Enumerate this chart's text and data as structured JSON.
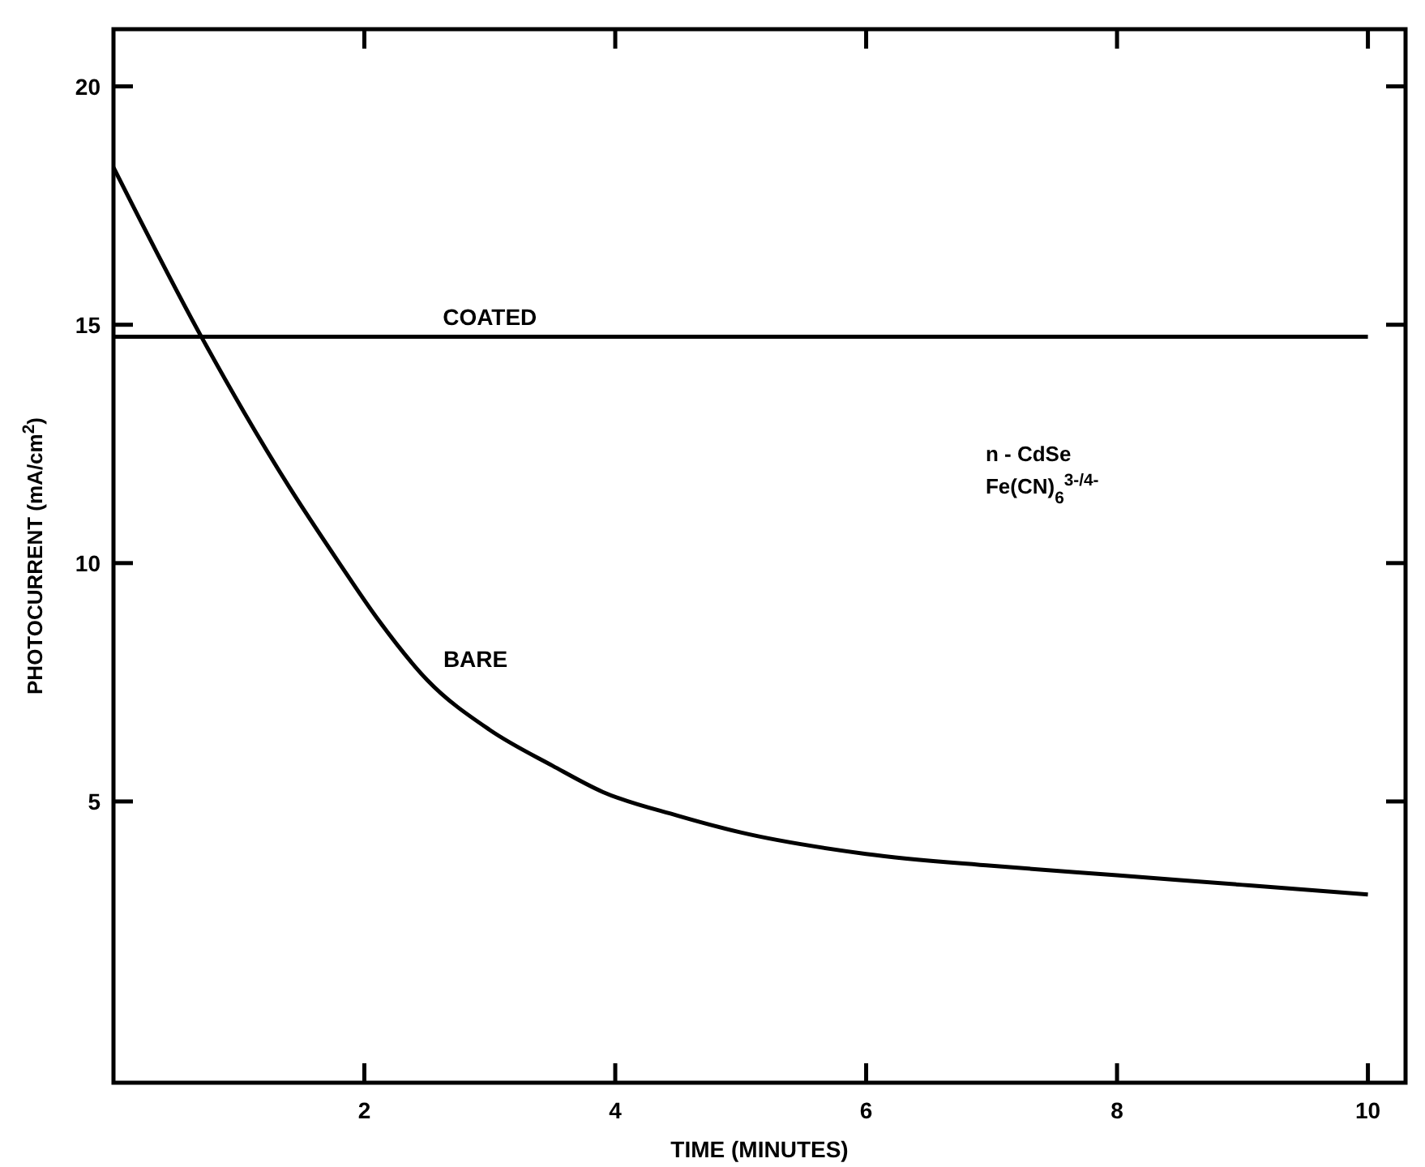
{
  "chart_data": {
    "type": "line",
    "xlabel": "TIME (MINUTES)",
    "ylabel": "PHOTOCURRENT (mA/cm$^{2}$)",
    "xlim": [
      0,
      10.3
    ],
    "ylim": [
      -0.9,
      21.2
    ],
    "xticks": [
      2,
      4,
      6,
      8,
      10
    ],
    "yticks": [
      5,
      10,
      15,
      20
    ],
    "grid": false,
    "marker": "none",
    "line_style": "solid",
    "series": [
      {
        "name": "COATED",
        "color": "#000000",
        "x": [
          0,
          10
        ],
        "values": [
          14.75,
          14.75
        ]
      },
      {
        "name": "BARE",
        "color": "#000000",
        "x": [
          0,
          0.7,
          1.4,
          1.8,
          2.1,
          2.5,
          3,
          3.5,
          3.9,
          4.5,
          5,
          6,
          7,
          8,
          9,
          10
        ],
        "values": [
          18.3,
          14.75,
          11.6,
          10.0,
          8.85,
          7.55,
          6.5,
          5.75,
          5.2,
          4.7,
          4.35,
          3.9,
          3.65,
          3.45,
          3.25,
          3.05
        ]
      }
    ],
    "annotations": [
      "n - CdSe",
      "Fe(CN)$_{6}$$^{3-/4-}$"
    ]
  }
}
